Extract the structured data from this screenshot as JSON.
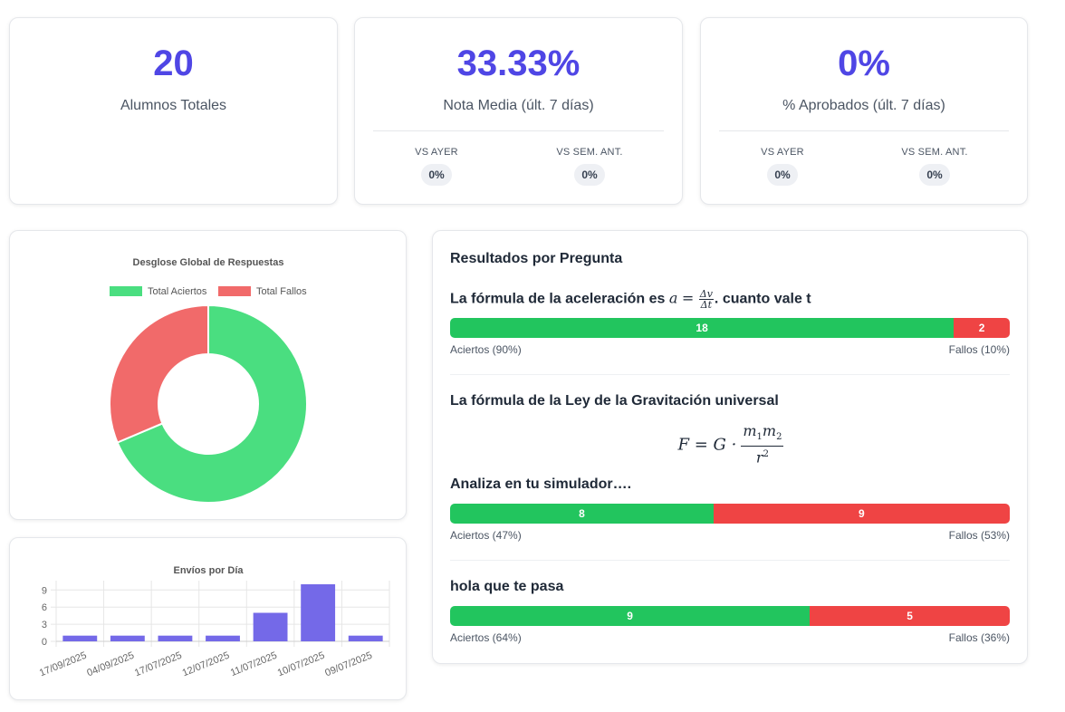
{
  "stats": [
    {
      "value": "20",
      "label": "Alumnos Totales"
    },
    {
      "value": "33.33%",
      "label": "Nota Media (últ. 7 días)",
      "cmp": [
        {
          "label": "VS AYER",
          "value": "0%"
        },
        {
          "label": "VS SEM. ANT.",
          "value": "0%"
        }
      ]
    },
    {
      "value": "0%",
      "label": "% Aprobados (últ. 7 días)",
      "cmp": [
        {
          "label": "VS AYER",
          "value": "0%"
        },
        {
          "label": "VS SEM. ANT.",
          "value": "0%"
        }
      ]
    }
  ],
  "results": {
    "title": "Resultados por Pregunta",
    "questions": [
      {
        "title_prefix": "La fórmula de la aceleración es ",
        "math_var": "a",
        "math_eq": "=",
        "frac_num": "Δv",
        "frac_den": "Δt",
        "title_suffix": ". cuanto vale t",
        "correct": 18,
        "wrong": 2,
        "correct_label": "Aciertos (90%)",
        "wrong_label": "Fallos (10%)"
      },
      {
        "title": "La fórmula de la Ley de la Gravitación universal",
        "formula_lhs": "F = G ·",
        "formula_num": "m",
        "formula_num_sub1": "1",
        "formula_num_var2": "m",
        "formula_num_sub2": "2",
        "formula_den": "r",
        "formula_den_sup": "2"
      },
      {
        "title": "Analiza en tu simulador….",
        "correct": 8,
        "wrong": 9,
        "correct_label": "Aciertos (47%)",
        "wrong_label": "Fallos (53%)"
      },
      {
        "title": "hola que te pasa",
        "correct": 9,
        "wrong": 5,
        "correct_label": "Aciertos (64%)",
        "wrong_label": "Fallos (36%)"
      }
    ]
  },
  "colors": {
    "accent": "#4f46e5",
    "correct": "#22c55e",
    "wrong": "#ef4444",
    "doughnut_correct": "#4ade80",
    "doughnut_wrong": "#f16a6a",
    "bar": "#7469e8"
  },
  "chart_data": [
    {
      "type": "pie",
      "title": "Desglose Global de Respuestas",
      "categories": [
        "Total Aciertos",
        "Total Fallos"
      ],
      "values": [
        35,
        16
      ],
      "legend": "top"
    },
    {
      "type": "bar",
      "title": "Envíos por Día",
      "categories": [
        "17/09/2025",
        "04/09/2025",
        "17/07/2025",
        "12/07/2025",
        "11/07/2025",
        "10/07/2025",
        "09/07/2025"
      ],
      "values": [
        1,
        1,
        1,
        1,
        5,
        10,
        1
      ],
      "yticks": [
        "0",
        "3",
        "6",
        "9"
      ],
      "ylim": [
        0,
        10
      ],
      "grid": true
    }
  ]
}
